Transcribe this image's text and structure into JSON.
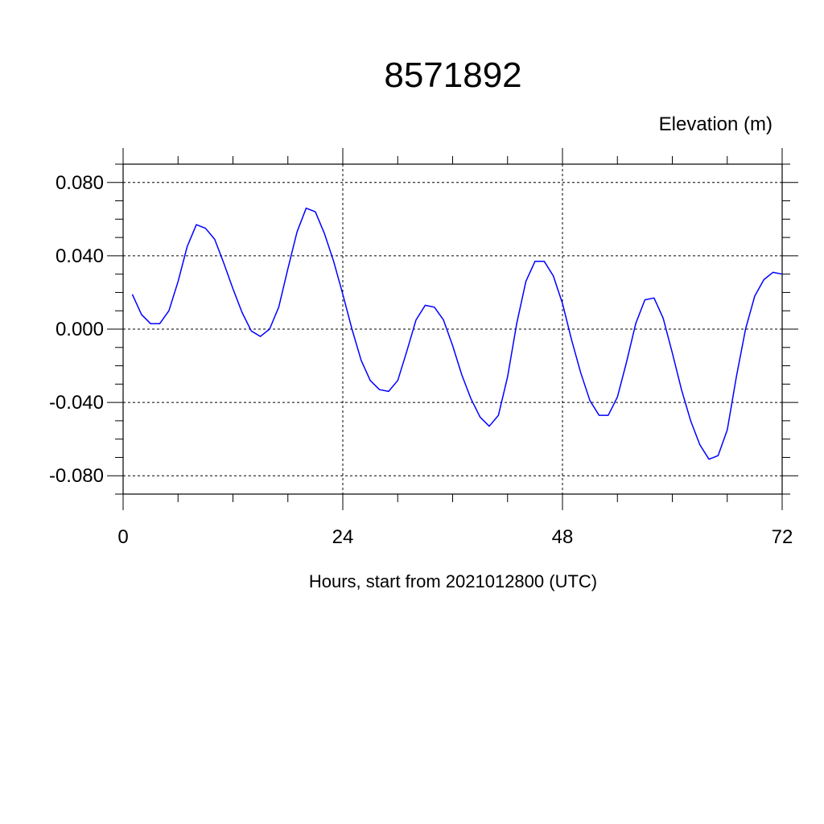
{
  "chart_data": {
    "type": "line",
    "title": "8571892",
    "units_label": "Elevation (m)",
    "xlabel": "Hours, start from 2021012800 (UTC)",
    "ylabel": "",
    "xlim": [
      0,
      72
    ],
    "ylim": [
      -0.09,
      0.09
    ],
    "x_ticks": [
      0,
      24,
      48,
      72
    ],
    "x_tick_labels": [
      "0",
      "24",
      "48",
      "72"
    ],
    "y_ticks": [
      -0.08,
      -0.04,
      0.0,
      0.04,
      0.08
    ],
    "y_tick_labels": [
      "-0.080",
      "-0.040",
      "0.000",
      "0.040",
      "0.080"
    ],
    "grid": true,
    "line_color": "#0000ff",
    "series": [
      {
        "x": [
          1,
          2,
          3,
          4,
          5,
          6,
          7,
          8,
          9,
          10,
          11,
          12,
          13,
          14,
          15,
          16,
          17,
          18,
          19,
          20,
          21,
          22,
          23,
          24,
          25,
          26,
          27,
          28,
          29,
          30,
          31,
          32,
          33,
          34,
          35,
          36,
          37,
          38,
          39,
          40,
          41,
          42,
          43,
          44,
          45,
          46,
          47,
          48,
          49,
          50,
          51,
          52,
          53,
          54,
          55,
          56,
          57,
          58,
          59,
          60,
          61,
          62,
          63,
          64,
          65,
          66,
          67,
          68,
          69,
          70,
          71,
          72
        ],
        "values": [
          0.019,
          0.008,
          0.003,
          0.003,
          0.01,
          0.026,
          0.045,
          0.057,
          0.055,
          0.049,
          0.036,
          0.022,
          0.009,
          -0.001,
          -0.004,
          0.0,
          0.012,
          0.033,
          0.053,
          0.066,
          0.064,
          0.052,
          0.037,
          0.019,
          0.0,
          -0.017,
          -0.028,
          -0.033,
          -0.034,
          -0.028,
          -0.012,
          0.005,
          0.013,
          0.012,
          0.005,
          -0.009,
          -0.025,
          -0.038,
          -0.048,
          -0.053,
          -0.047,
          -0.026,
          0.003,
          0.026,
          0.037,
          0.037,
          0.029,
          0.014,
          -0.006,
          -0.024,
          -0.039,
          -0.047,
          -0.047,
          -0.037,
          -0.018,
          0.003,
          0.016,
          0.017,
          0.006,
          -0.013,
          -0.033,
          -0.05,
          -0.063,
          -0.071,
          -0.069,
          -0.055,
          -0.026,
          0.0,
          0.018,
          0.027,
          0.031,
          0.03
        ]
      }
    ]
  }
}
